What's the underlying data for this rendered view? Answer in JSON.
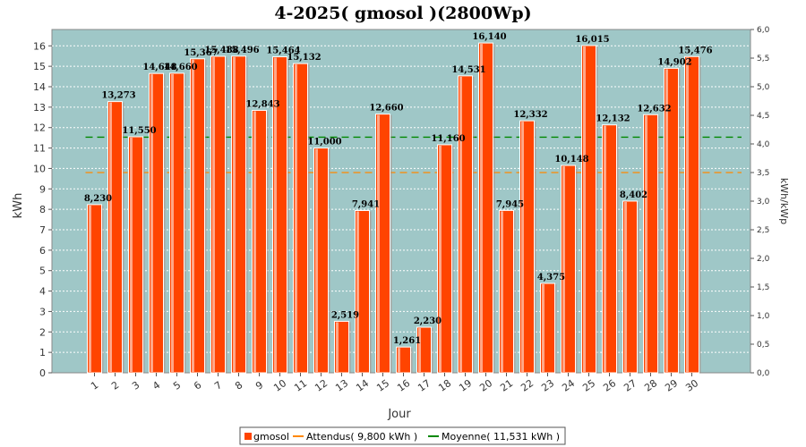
{
  "chart_data": {
    "type": "bar",
    "title": "4-2025( gmosol )(2800Wp)",
    "xlabel": "Jour",
    "ylabel": "kWh",
    "y2label": "kWh/kWp",
    "ylim": [
      0,
      16.8
    ],
    "y2lim": [
      0,
      6.0
    ],
    "yticks": [
      "0",
      "1",
      "2",
      "3",
      "4",
      "5",
      "6",
      "7",
      "8",
      "9",
      "10",
      "11",
      "12",
      "13",
      "14",
      "15",
      "16"
    ],
    "y2ticks": [
      "0,0",
      "0,5",
      "1,0",
      "1,5",
      "2,0",
      "2,5",
      "3,0",
      "3,5",
      "4,0",
      "4,5",
      "5,0",
      "5,5",
      "6,0"
    ],
    "categories": [
      "1",
      "2",
      "3",
      "4",
      "5",
      "6",
      "7",
      "8",
      "9",
      "10",
      "11",
      "12",
      "13",
      "14",
      "15",
      "16",
      "17",
      "18",
      "19",
      "20",
      "21",
      "22",
      "23",
      "24",
      "25",
      "26",
      "27",
      "28",
      "29",
      "30"
    ],
    "series": [
      {
        "name": "gmosol",
        "color": "#ff4400",
        "values": [
          8.23,
          13.273,
          11.55,
          14.648,
          14.66,
          15.367,
          15.488,
          15.496,
          12.843,
          15.464,
          15.132,
          11.0,
          2.519,
          7.941,
          12.66,
          1.261,
          2.23,
          11.16,
          14.531,
          16.14,
          7.945,
          12.332,
          4.375,
          10.148,
          16.015,
          12.132,
          8.402,
          12.632,
          14.902,
          15.476
        ],
        "labels": [
          "8,230",
          "13,273",
          "11,550",
          "14,648",
          "14,660",
          "15,367",
          "15,488",
          "15,496",
          "12,843",
          "15,464",
          "15,132",
          "11,000",
          "2,519",
          "7,941",
          "12,660",
          "1,261",
          "2,230",
          "11,160",
          "14,531",
          "16,140",
          "7,945",
          "12,332",
          "4,375",
          "10,148",
          "16,015",
          "12,132",
          "8,402",
          "12,632",
          "14,902",
          "15,476"
        ]
      }
    ],
    "reference_lines": [
      {
        "name": "Attendus( 9,800 kWh )",
        "value": 9.8,
        "color": "#ff8800",
        "style": "dashed"
      },
      {
        "name": "Moyenne( 11,531 kWh )",
        "value": 11.531,
        "color": "#008800",
        "style": "dashed"
      }
    ],
    "plot_background": "#9fc7c7",
    "grid": true,
    "legend_position": "bottom"
  }
}
